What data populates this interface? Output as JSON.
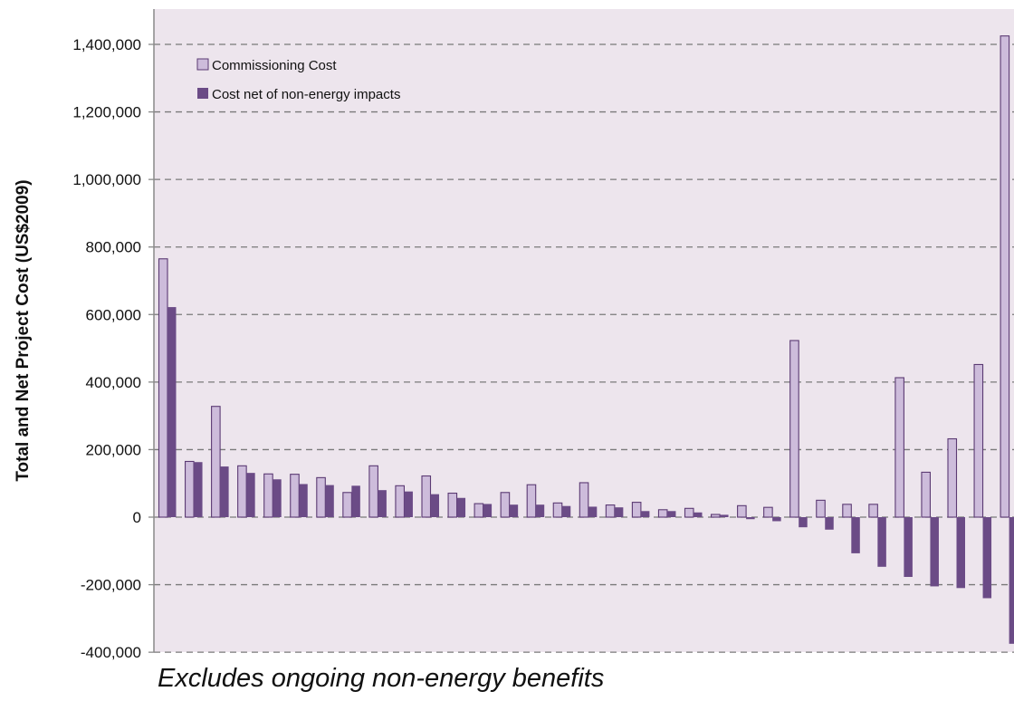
{
  "colors": {
    "plot_background": "#ede5ed",
    "commissioning_fill": "#cdbcdb",
    "commissioning_stroke": "#5b3a73",
    "net_fill": "#6b4b86",
    "gridline": "#7a7a7a"
  },
  "caption": "Excludes ongoing non-energy benefits",
  "chart_data": {
    "type": "bar",
    "title": "",
    "xlabel": "",
    "ylabel": "Total and Net Project Cost (US$2009)",
    "ylim": [
      -400000,
      1500000
    ],
    "yticks": [
      -400000,
      -200000,
      0,
      200000,
      400000,
      600000,
      800000,
      1000000,
      1200000,
      1400000
    ],
    "ytick_labels": [
      "-400,000",
      "-200,000",
      "0",
      "200,000",
      "400,000",
      "600,000",
      "800,000",
      "1,000,000",
      "1,200,000",
      "1,400,000"
    ],
    "grid": "horizontal dashed",
    "legend_position": "top-left",
    "categories": [
      "",
      "",
      "",
      "",
      "",
      "",
      "",
      "",
      "",
      "",
      "",
      "",
      "",
      "",
      "",
      "",
      "",
      "",
      "",
      "",
      "",
      "",
      "",
      "",
      "",
      "",
      "",
      "",
      "",
      "",
      "",
      "",
      ""
    ],
    "series": [
      {
        "name": "Commissioning Cost",
        "color": "#cdbcdb",
        "values": [
          765000,
          165000,
          328000,
          152000,
          128000,
          127000,
          117000,
          73000,
          152000,
          93000,
          122000,
          71000,
          40000,
          73000,
          96000,
          42000,
          102000,
          36000,
          44000,
          22000,
          26000,
          8000,
          34000,
          29000,
          523000,
          50000,
          38000,
          38000,
          413000,
          133000,
          232000,
          452000,
          1425000
        ]
      },
      {
        "name": "Cost net of non-energy impacts",
        "color": "#6b4b86",
        "values": [
          622000,
          163000,
          150000,
          131000,
          112000,
          98000,
          95000,
          93000,
          80000,
          76000,
          68000,
          57000,
          39000,
          37000,
          37000,
          33000,
          31000,
          29000,
          18000,
          18000,
          14000,
          7000,
          -6000,
          -12000,
          -30000,
          -37000,
          -107000,
          -147000,
          -177000,
          -205000,
          -210000,
          -240000,
          -375000
        ]
      }
    ]
  }
}
